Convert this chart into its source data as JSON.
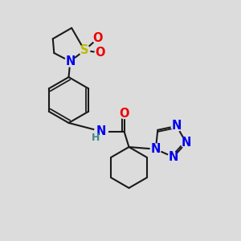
{
  "bg_color": "#dcdcdc",
  "bond_color": "#1a1a1a",
  "bond_width": 1.5,
  "atom_colors": {
    "N": "#0000ee",
    "O": "#ee0000",
    "S": "#bbbb00",
    "H": "#448888",
    "C": "#1a1a1a"
  },
  "font_size": 10.5,
  "font_size_h": 9.0
}
